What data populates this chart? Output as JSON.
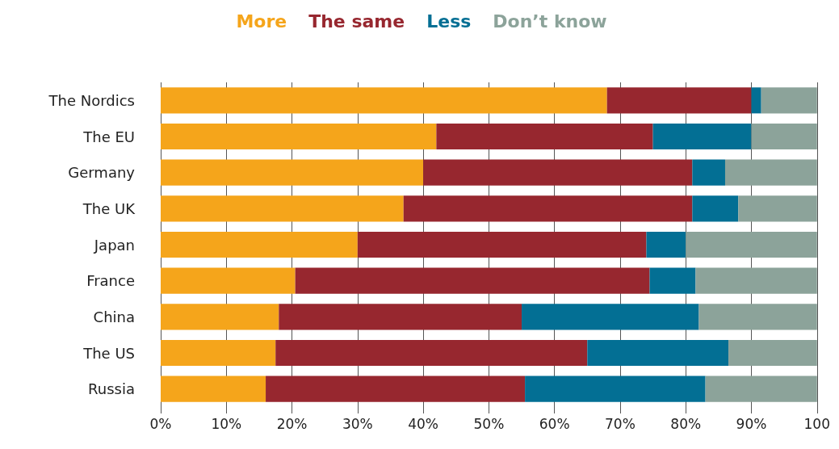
{
  "chart_data": {
    "type": "bar",
    "orientation": "horizontal",
    "stacked": true,
    "categories": [
      "The Nordics",
      "The EU",
      "Germany",
      "The UK",
      "Japan",
      "France",
      "China",
      "The US",
      "Russia"
    ],
    "series": [
      {
        "name": "More",
        "color": "#f5a51b",
        "values": [
          68,
          42,
          40,
          37,
          30,
          20.5,
          18,
          17.5,
          16
        ]
      },
      {
        "name": "The same",
        "color": "#97272f",
        "values": [
          22,
          33,
          41,
          44,
          44,
          54,
          37,
          47.5,
          39.5
        ]
      },
      {
        "name": "Less",
        "color": "#036f94",
        "values": [
          1.5,
          15,
          5,
          7,
          6,
          7,
          27,
          21.5,
          27.5
        ]
      },
      {
        "name": "Don’t know",
        "color": "#8ca39a",
        "values": [
          8.5,
          10,
          14,
          12,
          20,
          18.5,
          18,
          13.5,
          17
        ]
      }
    ],
    "xlim": [
      0,
      100
    ],
    "xticks": [
      {
        "value": 0,
        "label": "0%"
      },
      {
        "value": 10,
        "label": "10%"
      },
      {
        "value": 20,
        "label": "20%"
      },
      {
        "value": 30,
        "label": "30%"
      },
      {
        "value": 40,
        "label": "40%"
      },
      {
        "value": 50,
        "label": "50%"
      },
      {
        "value": 60,
        "label": "60%"
      },
      {
        "value": 70,
        "label": "70%"
      },
      {
        "value": 80,
        "label": "80%"
      },
      {
        "value": 90,
        "label": "90%"
      },
      100
    ],
    "grid": "x",
    "legend": "top"
  }
}
